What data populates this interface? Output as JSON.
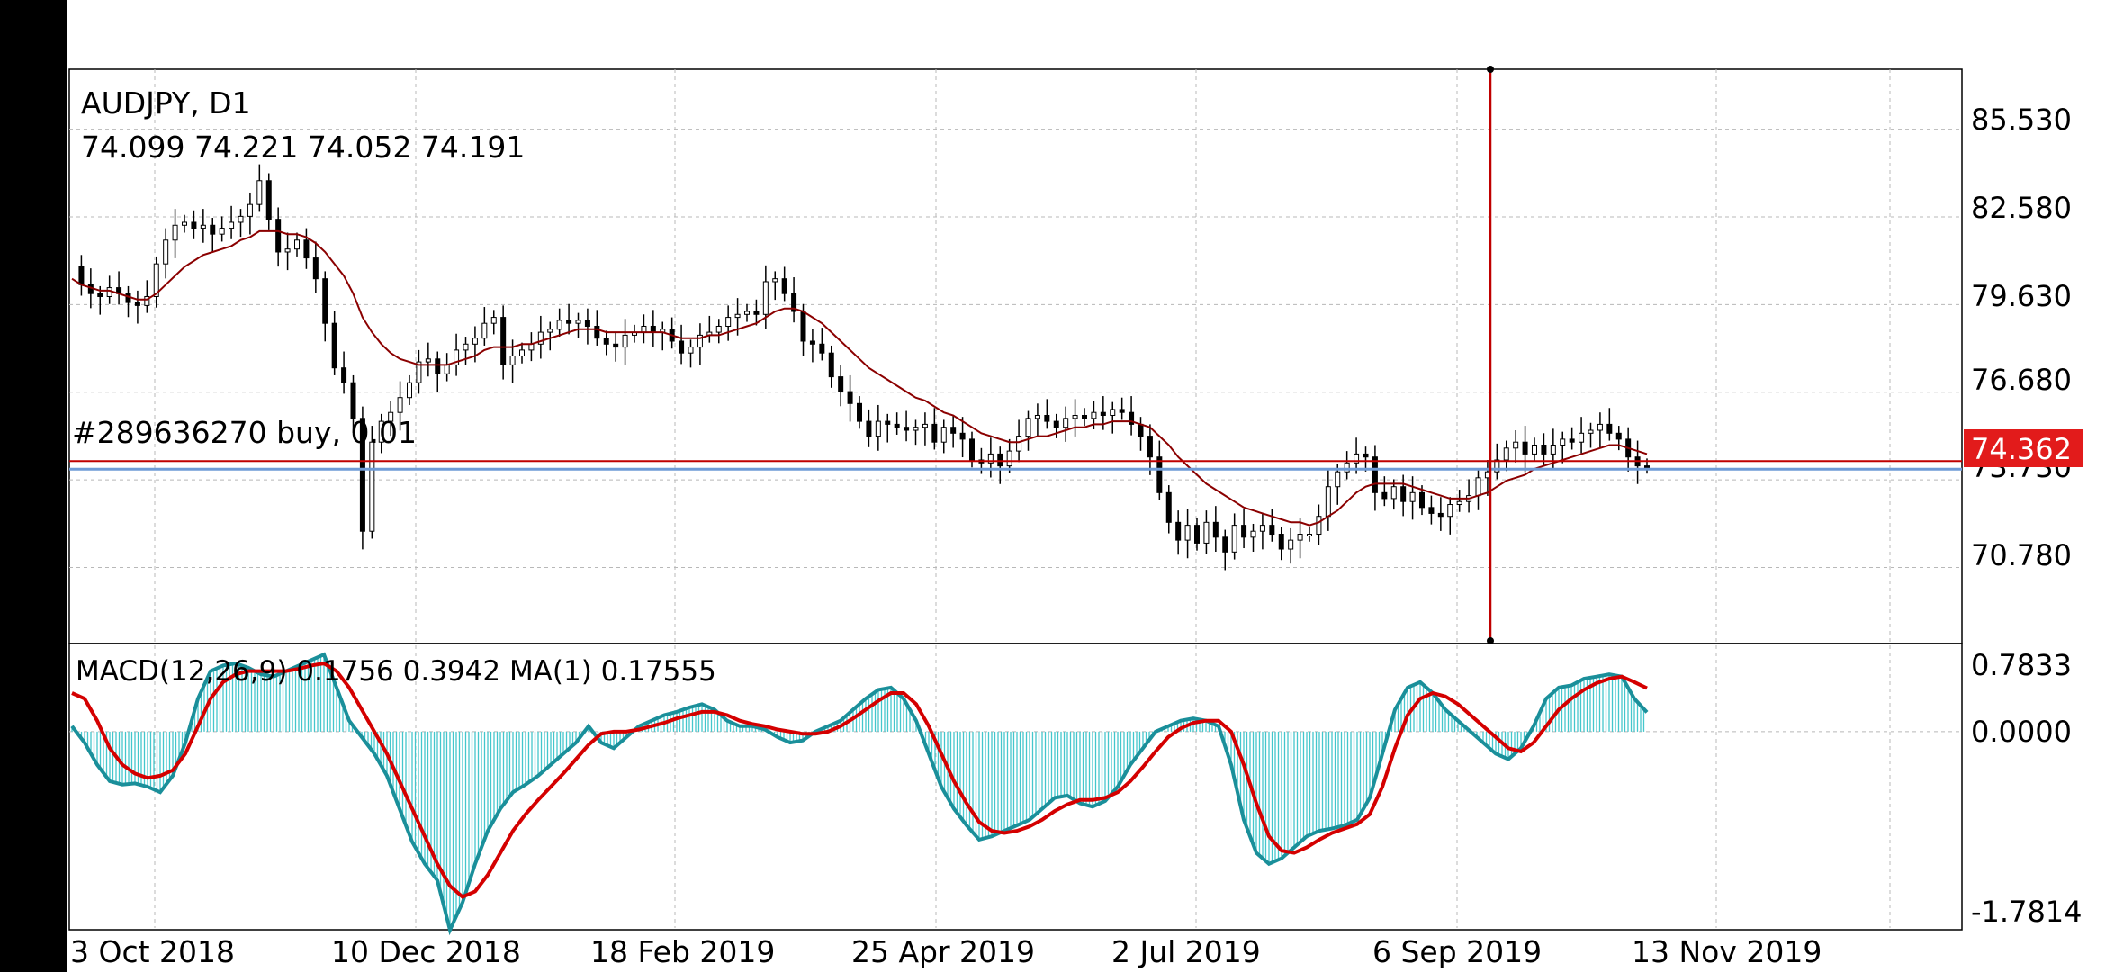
{
  "chart_data": [
    {
      "type": "candlestick",
      "symbol_label": "AUDJPY, D1",
      "ohlc_label": "74.099 74.221 74.052 74.191",
      "trade_label": "#289636270 buy, 0.01",
      "current_price_label": "74.362",
      "price_ticks": [
        "85.530",
        "82.580",
        "79.630",
        "76.680",
        "73.730",
        "70.780"
      ],
      "ylim": [
        68.28,
        87.55
      ],
      "date_ticks": [
        "3 Oct 2018",
        "10 Dec 2018",
        "18 Feb 2019",
        "25 Apr 2019",
        "2 Jul 2019",
        "6 Sep 2019",
        "13 Nov 2019"
      ],
      "buy_level": 74.362,
      "ask_level": 74.09,
      "close_series": [
        80.9,
        80.3,
        80.0,
        79.9,
        80.2,
        80.0,
        79.7,
        79.6,
        79.9,
        81.0,
        81.8,
        82.3,
        82.4,
        82.2,
        82.3,
        82.0,
        82.2,
        82.4,
        82.6,
        83.0,
        83.8,
        82.5,
        81.4,
        81.5,
        81.8,
        81.2,
        80.5,
        79.0,
        77.5,
        77.0,
        75.8,
        72.0,
        75.0,
        75.7,
        76.0,
        76.5,
        77.0,
        77.7,
        77.8,
        77.3,
        77.6,
        78.1,
        78.3,
        78.5,
        79.0,
        79.2,
        77.6,
        77.9,
        78.1,
        78.3,
        78.7,
        78.8,
        79.1,
        79.0,
        79.1,
        78.9,
        78.5,
        78.3,
        78.2,
        78.6,
        78.7,
        78.9,
        78.7,
        78.8,
        78.4,
        78.0,
        78.2,
        78.6,
        78.7,
        78.9,
        79.2,
        79.3,
        79.4,
        79.3,
        80.4,
        80.5,
        80.0,
        79.4,
        78.4,
        78.3,
        78.0,
        77.2,
        76.7,
        76.3,
        75.7,
        75.2,
        75.7,
        75.6,
        75.5,
        75.4,
        75.5,
        75.6,
        75.0,
        75.5,
        75.3,
        75.1,
        74.4,
        74.3,
        74.6,
        74.2,
        74.7,
        75.2,
        75.8,
        75.9,
        75.7,
        75.5,
        75.8,
        75.9,
        75.8,
        76.0,
        75.9,
        76.1,
        76.0,
        75.6,
        75.2,
        74.5,
        73.3,
        72.3,
        71.7,
        72.2,
        71.6,
        72.3,
        71.8,
        71.3,
        72.2,
        71.8,
        72.0,
        72.2,
        71.9,
        71.4,
        71.7,
        71.9,
        71.9,
        72.5,
        73.5,
        74.0,
        74.3,
        74.6,
        74.5,
        73.3,
        73.1,
        73.5,
        73.0,
        73.3,
        72.8,
        72.6,
        72.5,
        72.9,
        73.0,
        73.2,
        73.8,
        74.0,
        74.4,
        74.8,
        75.0,
        74.6,
        74.9,
        74.6,
        74.9,
        75.1,
        75.0,
        75.3,
        75.4,
        75.6,
        75.3,
        75.1,
        74.5,
        74.2,
        74.19
      ],
      "ma_series": [
        80.5,
        80.3,
        80.2,
        80.1,
        80.1,
        80.0,
        79.9,
        79.8,
        79.8,
        80.0,
        80.3,
        80.6,
        80.9,
        81.1,
        81.3,
        81.4,
        81.5,
        81.6,
        81.8,
        81.9,
        82.1,
        82.1,
        82.1,
        82.0,
        82.0,
        81.9,
        81.7,
        81.4,
        81.0,
        80.6,
        80.0,
        79.2,
        78.7,
        78.3,
        78.0,
        77.8,
        77.7,
        77.6,
        77.6,
        77.6,
        77.6,
        77.7,
        77.8,
        77.9,
        78.1,
        78.2,
        78.2,
        78.2,
        78.3,
        78.3,
        78.4,
        78.5,
        78.6,
        78.7,
        78.8,
        78.8,
        78.8,
        78.7,
        78.7,
        78.7,
        78.7,
        78.7,
        78.7,
        78.7,
        78.6,
        78.5,
        78.5,
        78.5,
        78.6,
        78.6,
        78.7,
        78.8,
        78.9,
        79.0,
        79.2,
        79.4,
        79.5,
        79.5,
        79.4,
        79.2,
        79.0,
        78.7,
        78.4,
        78.1,
        77.8,
        77.5,
        77.3,
        77.1,
        76.9,
        76.7,
        76.5,
        76.4,
        76.2,
        76.0,
        75.9,
        75.7,
        75.5,
        75.3,
        75.2,
        75.1,
        75.0,
        75.0,
        75.1,
        75.2,
        75.2,
        75.3,
        75.4,
        75.5,
        75.5,
        75.6,
        75.6,
        75.7,
        75.7,
        75.7,
        75.6,
        75.5,
        75.2,
        74.9,
        74.5,
        74.2,
        73.9,
        73.6,
        73.4,
        73.2,
        73.0,
        72.8,
        72.7,
        72.6,
        72.5,
        72.4,
        72.3,
        72.3,
        72.2,
        72.3,
        72.5,
        72.7,
        73.0,
        73.3,
        73.5,
        73.6,
        73.6,
        73.6,
        73.6,
        73.5,
        73.4,
        73.3,
        73.2,
        73.1,
        73.1,
        73.1,
        73.2,
        73.3,
        73.5,
        73.7,
        73.8,
        73.9,
        74.1,
        74.2,
        74.3,
        74.4,
        74.5,
        74.6,
        74.7,
        74.8,
        74.9,
        74.9,
        74.8,
        74.7,
        74.6
      ]
    },
    {
      "type": "histogram+line",
      "indicator_label": "MACD(12,26,9) 0.1756 0.3942 MA(1) 0.17555",
      "ticks": [
        "0.7833",
        "0.0000",
        "-1.7814"
      ],
      "ylim": [
        -1.7814,
        0.7833
      ],
      "macd": [
        0.05,
        -0.1,
        -0.3,
        -0.45,
        -0.48,
        -0.47,
        -0.5,
        -0.55,
        -0.4,
        -0.1,
        0.3,
        0.55,
        0.6,
        0.62,
        0.58,
        0.52,
        0.5,
        0.55,
        0.6,
        0.65,
        0.7,
        0.4,
        0.1,
        -0.05,
        -0.2,
        -0.4,
        -0.7,
        -1.0,
        -1.2,
        -1.35,
        -1.8,
        -1.55,
        -1.2,
        -0.9,
        -0.7,
        -0.55,
        -0.48,
        -0.4,
        -0.3,
        -0.2,
        -0.1,
        0.05,
        -0.1,
        -0.15,
        -0.05,
        0.05,
        0.1,
        0.15,
        0.18,
        0.22,
        0.25,
        0.2,
        0.1,
        0.05,
        0.05,
        0.02,
        -0.05,
        -0.1,
        -0.08,
        0.0,
        0.05,
        0.1,
        0.2,
        0.3,
        0.38,
        0.4,
        0.3,
        0.1,
        -0.2,
        -0.5,
        -0.7,
        -0.85,
        -0.98,
        -0.95,
        -0.9,
        -0.85,
        -0.8,
        -0.7,
        -0.6,
        -0.58,
        -0.65,
        -0.68,
        -0.63,
        -0.5,
        -0.3,
        -0.15,
        0.0,
        0.05,
        0.1,
        0.12,
        0.1,
        0.05,
        -0.3,
        -0.8,
        -1.1,
        -1.2,
        -1.15,
        -1.05,
        -0.95,
        -0.9,
        -0.88,
        -0.85,
        -0.8,
        -0.6,
        -0.2,
        0.2,
        0.4,
        0.45,
        0.35,
        0.2,
        0.1,
        0.0,
        -0.1,
        -0.2,
        -0.25,
        -0.15,
        0.05,
        0.3,
        0.4,
        0.42,
        0.48,
        0.5,
        0.52,
        0.5,
        0.3,
        0.1756
      ],
      "signal": [
        0.35,
        0.3,
        0.1,
        -0.15,
        -0.3,
        -0.38,
        -0.42,
        -0.4,
        -0.35,
        -0.2,
        0.05,
        0.3,
        0.45,
        0.52,
        0.55,
        0.55,
        0.55,
        0.55,
        0.57,
        0.6,
        0.62,
        0.55,
        0.4,
        0.2,
        0.0,
        -0.2,
        -0.45,
        -0.7,
        -0.95,
        -1.2,
        -1.4,
        -1.5,
        -1.45,
        -1.3,
        -1.1,
        -0.9,
        -0.75,
        -0.62,
        -0.5,
        -0.38,
        -0.25,
        -0.12,
        -0.02,
        0.0,
        0.0,
        0.02,
        0.05,
        0.08,
        0.12,
        0.15,
        0.18,
        0.18,
        0.15,
        0.1,
        0.07,
        0.05,
        0.02,
        0.0,
        -0.02,
        -0.02,
        0.0,
        0.05,
        0.12,
        0.2,
        0.28,
        0.35,
        0.35,
        0.25,
        0.05,
        -0.2,
        -0.45,
        -0.65,
        -0.82,
        -0.9,
        -0.92,
        -0.9,
        -0.86,
        -0.8,
        -0.72,
        -0.66,
        -0.62,
        -0.62,
        -0.6,
        -0.55,
        -0.45,
        -0.32,
        -0.18,
        -0.05,
        0.03,
        0.08,
        0.1,
        0.1,
        0.0,
        -0.3,
        -0.65,
        -0.95,
        -1.08,
        -1.1,
        -1.05,
        -0.98,
        -0.92,
        -0.88,
        -0.84,
        -0.75,
        -0.5,
        -0.15,
        0.15,
        0.3,
        0.35,
        0.32,
        0.25,
        0.15,
        0.05,
        -0.05,
        -0.15,
        -0.18,
        -0.1,
        0.05,
        0.2,
        0.3,
        0.38,
        0.44,
        0.48,
        0.5,
        0.45,
        0.3942
      ]
    }
  ]
}
